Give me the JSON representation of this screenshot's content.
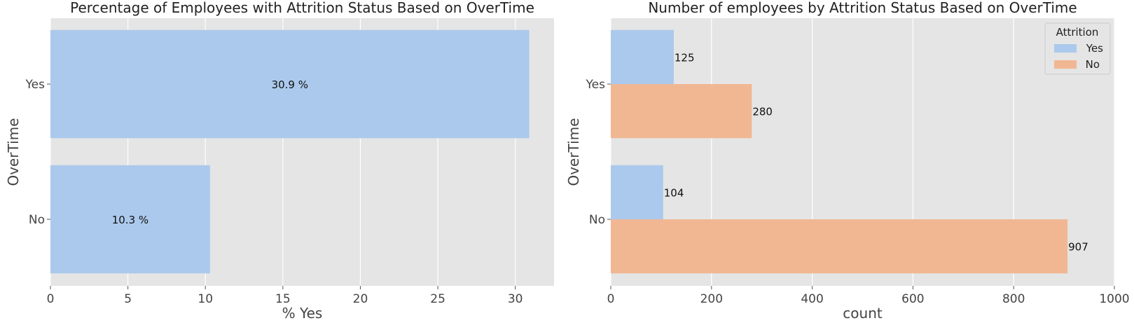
{
  "chart_data": [
    {
      "type": "bar",
      "orientation": "horizontal",
      "title": "Percentage of Employees with Attrition Status Based on OverTime",
      "xlabel": "% Yes",
      "ylabel": "OverTime",
      "categories": [
        "Yes",
        "No"
      ],
      "values": [
        30.9,
        10.3
      ],
      "data_labels": [
        "30.9 %",
        "10.3 %"
      ],
      "xlim": [
        0,
        32.5
      ],
      "xticks": [
        0,
        5,
        10,
        15,
        20,
        25,
        30
      ],
      "grid": true,
      "bar_color": "#abc9ec"
    },
    {
      "type": "bar",
      "orientation": "horizontal",
      "title": "Number of employees by Attrition Status Based on OverTime",
      "xlabel": "count",
      "ylabel": "OverTime",
      "categories": [
        "Yes",
        "No"
      ],
      "series": [
        {
          "name": "Yes",
          "values": [
            125,
            104
          ],
          "color": "#abc9ec"
        },
        {
          "name": "No",
          "values": [
            280,
            907
          ],
          "color": "#f1b793"
        }
      ],
      "data_labels": [
        [
          "125",
          "104"
        ],
        [
          "280",
          "907"
        ]
      ],
      "xlim": [
        0,
        1000
      ],
      "xticks": [
        0,
        200,
        400,
        600,
        800,
        1000
      ],
      "grid": true,
      "legend": {
        "title": "Attrition",
        "placement": "top-right"
      }
    }
  ]
}
